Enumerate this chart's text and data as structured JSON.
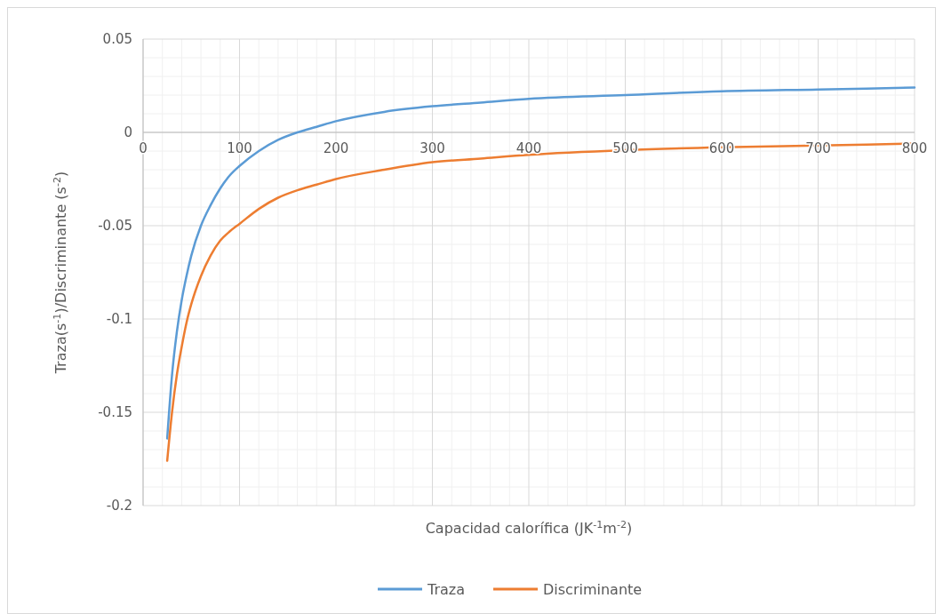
{
  "chart_data": {
    "type": "line",
    "xlabel": "Capacidad calorífica (JK$^{-1}$m$^{-2}$)",
    "ylabel": "Traza(s$^{-1}$)/Discriminante (s$^{-2}$)",
    "x": [
      25,
      30,
      35,
      40,
      45,
      50,
      60,
      70,
      80,
      90,
      100,
      120,
      140,
      160,
      180,
      200,
      250,
      300,
      350,
      400,
      500,
      600,
      700,
      800
    ],
    "series": [
      {
        "name": "Traza",
        "color": "#5b9bd5",
        "values": [
          -0.164,
          -0.13,
          -0.107,
          -0.09,
          -0.077,
          -0.066,
          -0.05,
          -0.039,
          -0.03,
          -0.023,
          -0.018,
          -0.01,
          -0.004,
          0.0,
          0.003,
          0.006,
          0.011,
          0.014,
          0.016,
          0.018,
          0.02,
          0.022,
          0.023,
          0.024
        ]
      },
      {
        "name": "Discriminante",
        "color": "#ed7d31",
        "values": [
          -0.176,
          -0.15,
          -0.13,
          -0.115,
          -0.102,
          -0.092,
          -0.077,
          -0.066,
          -0.058,
          -0.053,
          -0.049,
          -0.041,
          -0.035,
          -0.031,
          -0.028,
          -0.025,
          -0.02,
          -0.016,
          -0.014,
          -0.012,
          -0.0095,
          -0.008,
          -0.007,
          -0.006
        ]
      }
    ],
    "xlim": [
      0,
      800
    ],
    "xticks": [
      0,
      100,
      200,
      300,
      400,
      500,
      600,
      700,
      800
    ],
    "ylim": [
      -0.2,
      0.05
    ],
    "yticks": [
      {
        "value": -0.2,
        "label": "-0.2"
      },
      {
        "value": -0.15,
        "label": "-0.15"
      },
      {
        "value": -0.1,
        "label": "-0.1"
      },
      {
        "value": -0.05,
        "label": "-0.05"
      },
      {
        "value": 0,
        "label": "0"
      },
      {
        "value": 0.05,
        "label": "0.05"
      }
    ],
    "grid": true,
    "legend": "bottom",
    "marker": "none",
    "line_style": "solid"
  }
}
